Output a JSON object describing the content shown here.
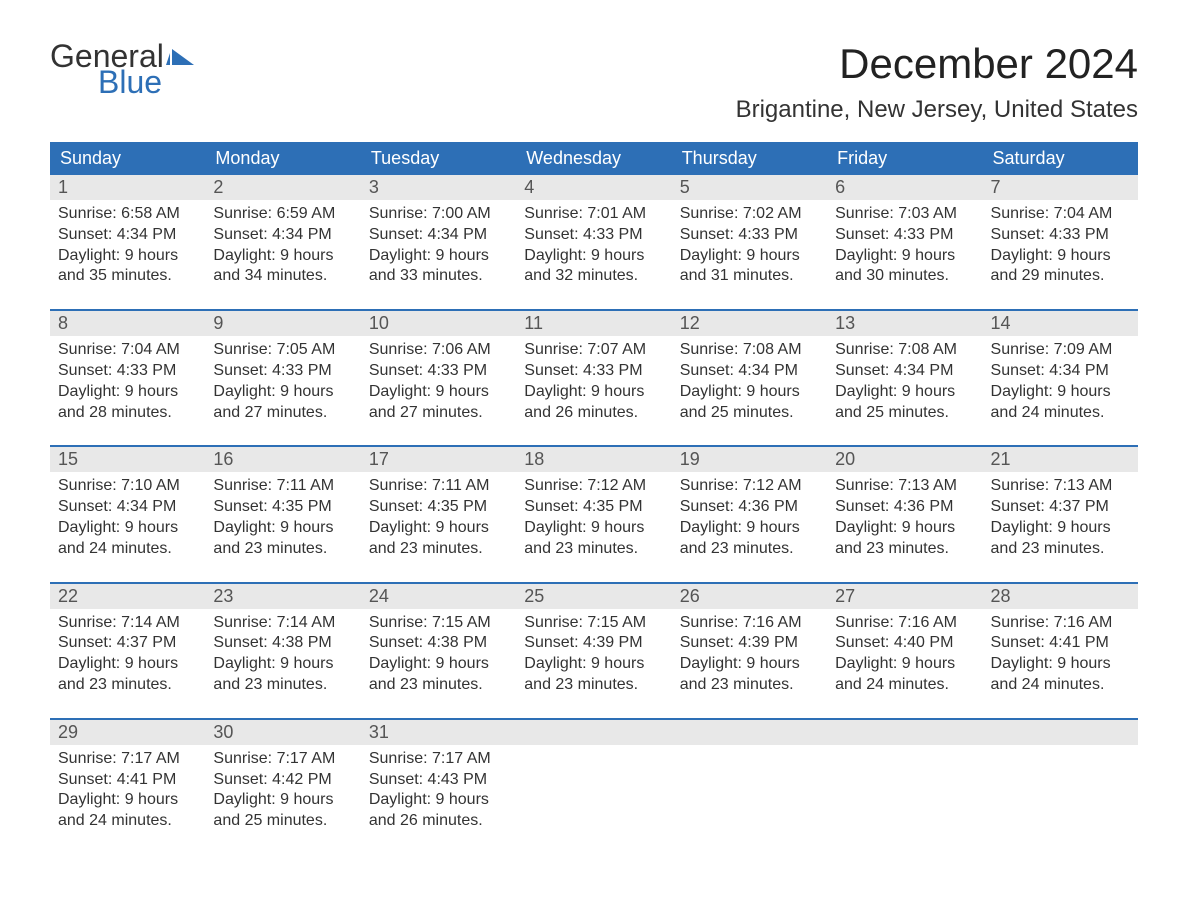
{
  "logo": {
    "word1": "General",
    "word2": "Blue",
    "flag_color": "#2d6fb6"
  },
  "title": "December 2024",
  "location": "Brigantine, New Jersey, United States",
  "colors": {
    "header_bg": "#2d6fb6",
    "header_text": "#ffffff",
    "daynum_bg": "#e8e8e8",
    "border": "#2d6fb6",
    "body_text": "#333333"
  },
  "day_names": [
    "Sunday",
    "Monday",
    "Tuesday",
    "Wednesday",
    "Thursday",
    "Friday",
    "Saturday"
  ],
  "weeks": [
    [
      {
        "n": "1",
        "sr": "Sunrise: 6:58 AM",
        "ss": "Sunset: 4:34 PM",
        "d1": "Daylight: 9 hours",
        "d2": "and 35 minutes."
      },
      {
        "n": "2",
        "sr": "Sunrise: 6:59 AM",
        "ss": "Sunset: 4:34 PM",
        "d1": "Daylight: 9 hours",
        "d2": "and 34 minutes."
      },
      {
        "n": "3",
        "sr": "Sunrise: 7:00 AM",
        "ss": "Sunset: 4:34 PM",
        "d1": "Daylight: 9 hours",
        "d2": "and 33 minutes."
      },
      {
        "n": "4",
        "sr": "Sunrise: 7:01 AM",
        "ss": "Sunset: 4:33 PM",
        "d1": "Daylight: 9 hours",
        "d2": "and 32 minutes."
      },
      {
        "n": "5",
        "sr": "Sunrise: 7:02 AM",
        "ss": "Sunset: 4:33 PM",
        "d1": "Daylight: 9 hours",
        "d2": "and 31 minutes."
      },
      {
        "n": "6",
        "sr": "Sunrise: 7:03 AM",
        "ss": "Sunset: 4:33 PM",
        "d1": "Daylight: 9 hours",
        "d2": "and 30 minutes."
      },
      {
        "n": "7",
        "sr": "Sunrise: 7:04 AM",
        "ss": "Sunset: 4:33 PM",
        "d1": "Daylight: 9 hours",
        "d2": "and 29 minutes."
      }
    ],
    [
      {
        "n": "8",
        "sr": "Sunrise: 7:04 AM",
        "ss": "Sunset: 4:33 PM",
        "d1": "Daylight: 9 hours",
        "d2": "and 28 minutes."
      },
      {
        "n": "9",
        "sr": "Sunrise: 7:05 AM",
        "ss": "Sunset: 4:33 PM",
        "d1": "Daylight: 9 hours",
        "d2": "and 27 minutes."
      },
      {
        "n": "10",
        "sr": "Sunrise: 7:06 AM",
        "ss": "Sunset: 4:33 PM",
        "d1": "Daylight: 9 hours",
        "d2": "and 27 minutes."
      },
      {
        "n": "11",
        "sr": "Sunrise: 7:07 AM",
        "ss": "Sunset: 4:33 PM",
        "d1": "Daylight: 9 hours",
        "d2": "and 26 minutes."
      },
      {
        "n": "12",
        "sr": "Sunrise: 7:08 AM",
        "ss": "Sunset: 4:34 PM",
        "d1": "Daylight: 9 hours",
        "d2": "and 25 minutes."
      },
      {
        "n": "13",
        "sr": "Sunrise: 7:08 AM",
        "ss": "Sunset: 4:34 PM",
        "d1": "Daylight: 9 hours",
        "d2": "and 25 minutes."
      },
      {
        "n": "14",
        "sr": "Sunrise: 7:09 AM",
        "ss": "Sunset: 4:34 PM",
        "d1": "Daylight: 9 hours",
        "d2": "and 24 minutes."
      }
    ],
    [
      {
        "n": "15",
        "sr": "Sunrise: 7:10 AM",
        "ss": "Sunset: 4:34 PM",
        "d1": "Daylight: 9 hours",
        "d2": "and 24 minutes."
      },
      {
        "n": "16",
        "sr": "Sunrise: 7:11 AM",
        "ss": "Sunset: 4:35 PM",
        "d1": "Daylight: 9 hours",
        "d2": "and 23 minutes."
      },
      {
        "n": "17",
        "sr": "Sunrise: 7:11 AM",
        "ss": "Sunset: 4:35 PM",
        "d1": "Daylight: 9 hours",
        "d2": "and 23 minutes."
      },
      {
        "n": "18",
        "sr": "Sunrise: 7:12 AM",
        "ss": "Sunset: 4:35 PM",
        "d1": "Daylight: 9 hours",
        "d2": "and 23 minutes."
      },
      {
        "n": "19",
        "sr": "Sunrise: 7:12 AM",
        "ss": "Sunset: 4:36 PM",
        "d1": "Daylight: 9 hours",
        "d2": "and 23 minutes."
      },
      {
        "n": "20",
        "sr": "Sunrise: 7:13 AM",
        "ss": "Sunset: 4:36 PM",
        "d1": "Daylight: 9 hours",
        "d2": "and 23 minutes."
      },
      {
        "n": "21",
        "sr": "Sunrise: 7:13 AM",
        "ss": "Sunset: 4:37 PM",
        "d1": "Daylight: 9 hours",
        "d2": "and 23 minutes."
      }
    ],
    [
      {
        "n": "22",
        "sr": "Sunrise: 7:14 AM",
        "ss": "Sunset: 4:37 PM",
        "d1": "Daylight: 9 hours",
        "d2": "and 23 minutes."
      },
      {
        "n": "23",
        "sr": "Sunrise: 7:14 AM",
        "ss": "Sunset: 4:38 PM",
        "d1": "Daylight: 9 hours",
        "d2": "and 23 minutes."
      },
      {
        "n": "24",
        "sr": "Sunrise: 7:15 AM",
        "ss": "Sunset: 4:38 PM",
        "d1": "Daylight: 9 hours",
        "d2": "and 23 minutes."
      },
      {
        "n": "25",
        "sr": "Sunrise: 7:15 AM",
        "ss": "Sunset: 4:39 PM",
        "d1": "Daylight: 9 hours",
        "d2": "and 23 minutes."
      },
      {
        "n": "26",
        "sr": "Sunrise: 7:16 AM",
        "ss": "Sunset: 4:39 PM",
        "d1": "Daylight: 9 hours",
        "d2": "and 23 minutes."
      },
      {
        "n": "27",
        "sr": "Sunrise: 7:16 AM",
        "ss": "Sunset: 4:40 PM",
        "d1": "Daylight: 9 hours",
        "d2": "and 24 minutes."
      },
      {
        "n": "28",
        "sr": "Sunrise: 7:16 AM",
        "ss": "Sunset: 4:41 PM",
        "d1": "Daylight: 9 hours",
        "d2": "and 24 minutes."
      }
    ],
    [
      {
        "n": "29",
        "sr": "Sunrise: 7:17 AM",
        "ss": "Sunset: 4:41 PM",
        "d1": "Daylight: 9 hours",
        "d2": "and 24 minutes."
      },
      {
        "n": "30",
        "sr": "Sunrise: 7:17 AM",
        "ss": "Sunset: 4:42 PM",
        "d1": "Daylight: 9 hours",
        "d2": "and 25 minutes."
      },
      {
        "n": "31",
        "sr": "Sunrise: 7:17 AM",
        "ss": "Sunset: 4:43 PM",
        "d1": "Daylight: 9 hours",
        "d2": "and 26 minutes."
      },
      {
        "n": "",
        "sr": "",
        "ss": "",
        "d1": "",
        "d2": ""
      },
      {
        "n": "",
        "sr": "",
        "ss": "",
        "d1": "",
        "d2": ""
      },
      {
        "n": "",
        "sr": "",
        "ss": "",
        "d1": "",
        "d2": ""
      },
      {
        "n": "",
        "sr": "",
        "ss": "",
        "d1": "",
        "d2": ""
      }
    ]
  ]
}
